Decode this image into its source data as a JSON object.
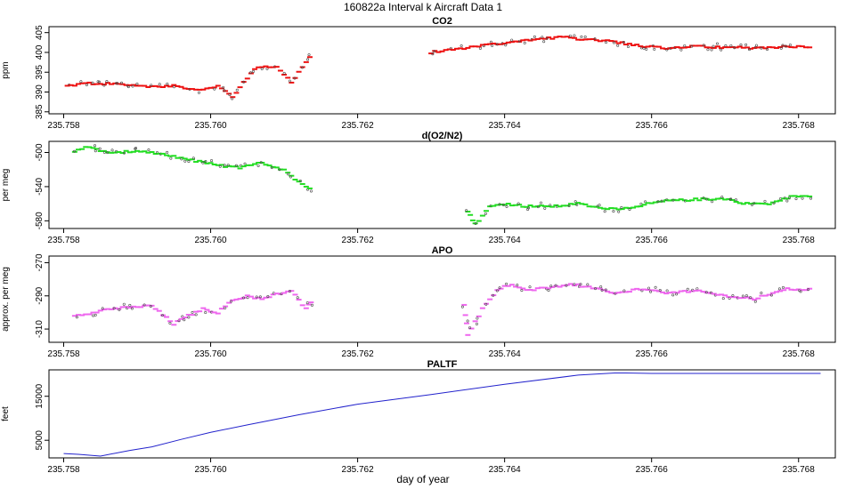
{
  "figure": {
    "title": "160822a   Interval k Aircraft Data 1",
    "xlabel": "day of year",
    "xticks": [
      "235.758",
      "235.760",
      "235.762",
      "235.764",
      "235.766",
      "235.768"
    ],
    "xlim": [
      235.7578,
      235.7685
    ]
  },
  "chart_data": [
    {
      "type": "scatter",
      "title": "CO2",
      "ylabel": "ppm",
      "ylim": [
        384.5,
        406.5
      ],
      "yticks": [
        385,
        390,
        395,
        400,
        405
      ],
      "color": "#ee1111",
      "segments": [
        {
          "x": [
            235.75805,
            235.7583,
            235.7587,
            235.7591,
            235.7595,
            235.7599,
            235.7601,
            235.7603,
            235.7606,
            235.7609,
            235.7611,
            235.7614
          ],
          "y": [
            391.5,
            392.2,
            392.0,
            391.5,
            391.5,
            390.5,
            391.5,
            388.8,
            396.0,
            396.5,
            392.5,
            400.0
          ]
        },
        {
          "x": [
            235.763,
            235.7634,
            235.7638,
            235.7642,
            235.7645,
            235.7648,
            235.7651,
            235.7654,
            235.7658,
            235.7662,
            235.7666,
            235.767,
            235.7674,
            235.7678,
            235.7682
          ],
          "y": [
            400.0,
            401.0,
            402.0,
            402.8,
            403.5,
            403.8,
            403.3,
            403.0,
            401.8,
            401.0,
            401.5,
            401.2,
            401.2,
            401.4,
            401.5
          ]
        }
      ]
    },
    {
      "type": "scatter",
      "title": "d(O2/N2)",
      "ylabel": "per meg",
      "ylim": [
        -589,
        -487
      ],
      "yticks": [
        -500,
        -540,
        -580
      ],
      "color": "#22dd22",
      "segments": [
        {
          "x": [
            235.75815,
            235.7583,
            235.7586,
            235.7589,
            235.7592,
            235.7595,
            235.7598,
            235.7601,
            235.7604,
            235.7607,
            235.761,
            235.7612,
            235.7614
          ],
          "y": [
            -500,
            -493,
            -500,
            -499,
            -500,
            -505,
            -510,
            -515,
            -518,
            -512,
            -520,
            -535,
            -543
          ]
        },
        {
          "x": [
            235.7635,
            235.7636,
            235.7638,
            235.764,
            235.7643,
            235.7647,
            235.765,
            235.7653,
            235.7656,
            235.7659,
            235.7662,
            235.7666,
            235.767,
            235.7673,
            235.7676,
            235.7679,
            235.7682
          ],
          "y": [
            -568,
            -584,
            -564,
            -560,
            -563,
            -563,
            -560,
            -565,
            -566,
            -561,
            -557,
            -555,
            -554,
            -560,
            -560,
            -552,
            -552
          ]
        }
      ]
    },
    {
      "type": "scatter",
      "title": "APO",
      "ylabel": "approx. per meg",
      "ylim": [
        -318,
        -266
      ],
      "yticks": [
        -270,
        -290,
        -310
      ],
      "color": "#ee66ee",
      "segments": [
        {
          "x": [
            235.75815,
            235.7583,
            235.7586,
            235.7589,
            235.7592,
            235.7595,
            235.7597,
            235.7599,
            235.7601,
            235.7603,
            235.7605,
            235.7607,
            235.7609,
            235.7611,
            235.7613,
            235.7614
          ],
          "y": [
            -302,
            -301,
            -298,
            -297,
            -296,
            -307,
            -302,
            -298,
            -300,
            -293,
            -290,
            -292,
            -289,
            -287,
            -298,
            -291
          ]
        },
        {
          "x": [
            235.76345,
            235.7635,
            235.7637,
            235.7639,
            235.7641,
            235.7643,
            235.7646,
            235.7649,
            235.7652,
            235.7655,
            235.7658,
            235.7662,
            235.7666,
            235.767,
            235.7674,
            235.7678,
            235.7682
          ],
          "y": [
            -295,
            -313,
            -298,
            -286,
            -283,
            -287,
            -285,
            -283,
            -285,
            -289,
            -286,
            -288,
            -287,
            -290,
            -292,
            -286,
            -286
          ]
        }
      ]
    },
    {
      "type": "line",
      "title": "PALTF",
      "ylabel": "feet",
      "ylim": [
        1000,
        21000
      ],
      "yticks": [
        5000,
        15000
      ],
      "color": "#2222cc",
      "x": [
        235.758,
        235.7582,
        235.7585,
        235.7589,
        235.7592,
        235.7596,
        235.76,
        235.7605,
        235.7612,
        235.762,
        235.763,
        235.764,
        235.765,
        235.7655,
        235.76565,
        235.766,
        235.767,
        235.768,
        235.7683
      ],
      "y": [
        2000,
        1800,
        1400,
        2700,
        3500,
        5200,
        6800,
        8500,
        10800,
        13200,
        15400,
        17700,
        19800,
        20300,
        20300,
        20200,
        20200,
        20200,
        20200
      ]
    }
  ]
}
